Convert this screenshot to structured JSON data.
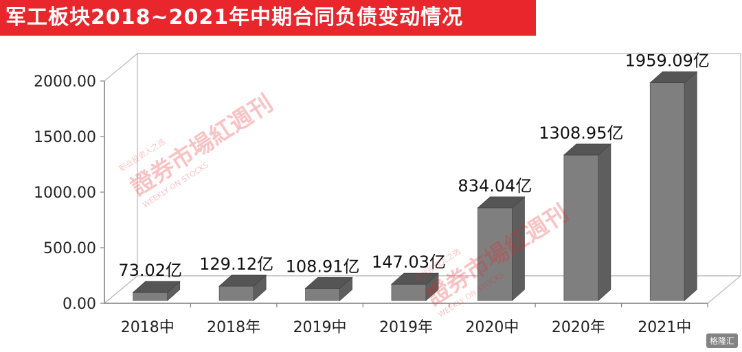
{
  "title": "军工板块2018~2021年中期合同负债变动情况",
  "watermark": {
    "main": "證券市場紅週刊",
    "tagline": "职业投资人之选",
    "english": "WEEKLY ON STOCKS"
  },
  "logo_text": "格隆汇",
  "chart_data": {
    "type": "bar",
    "title": "军工板块2018~2021年中期合同负债变动情况",
    "categories": [
      "2018中",
      "2018年",
      "2019中",
      "2019年",
      "2020中",
      "2020年",
      "2021中"
    ],
    "series": [
      {
        "values": [
          73.02,
          129.12,
          108.91,
          147.03,
          834.04,
          1308.95,
          1959.09
        ]
      }
    ],
    "data_labels": [
      "73.02亿",
      "129.12亿",
      "108.91亿",
      "147.03亿",
      "834.04亿",
      "1308.95亿",
      "1959.09亿"
    ],
    "yticks": [
      "0.00",
      "500.00",
      "1000.00",
      "1500.00",
      "2000.00"
    ],
    "ylim": [
      0,
      2000
    ],
    "grid": false,
    "bar_color": "#7f7f7f",
    "style": "3d"
  }
}
